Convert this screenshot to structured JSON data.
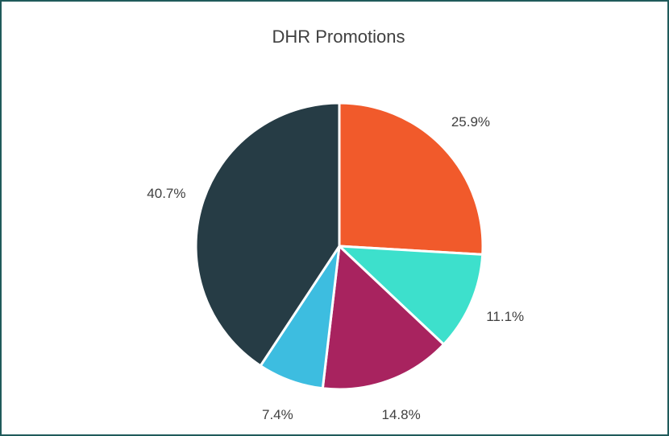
{
  "chart_data": {
    "type": "pie",
    "title": "DHR Promotions",
    "values": [
      25.9,
      11.1,
      14.8,
      7.4,
      40.7
    ],
    "value_labels": [
      "25.9%",
      "11.1%",
      "14.8%",
      "7.4%",
      "40.7%"
    ],
    "colors": [
      "#f15a2b",
      "#3de0cc",
      "#a8235f",
      "#3dbde0",
      "#263c45"
    ]
  }
}
